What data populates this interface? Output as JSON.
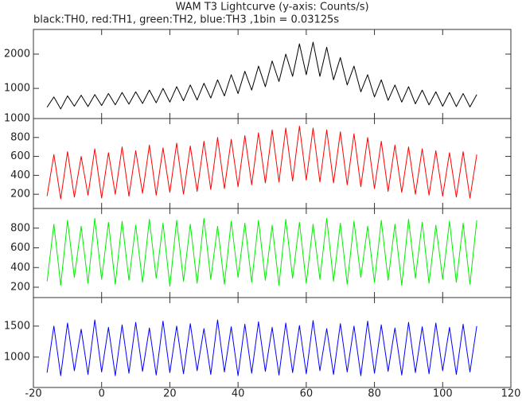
{
  "title": "WAM T3 Lightcurve (y-axis: Counts/s)",
  "subtitle": "black:TH0, red:TH1, green:TH2, blue:TH3 ,1bin = 0.03125s",
  "chart_data": [
    {
      "type": "line",
      "xlim": [
        -20,
        120
      ],
      "xticks": [
        -20,
        0,
        20,
        40,
        60,
        80,
        100,
        120
      ],
      "ylim": [
        120,
        2720
      ],
      "yticks": [
        1000,
        2000
      ],
      "x": [
        -16,
        -14,
        -12,
        -10,
        -8,
        -6,
        -4,
        -2,
        0,
        2,
        4,
        6,
        8,
        10,
        12,
        14,
        16,
        18,
        20,
        22,
        24,
        26,
        28,
        30,
        32,
        34,
        36,
        38,
        40,
        42,
        44,
        46,
        48,
        50,
        52,
        54,
        56,
        58,
        60,
        62,
        64,
        66,
        68,
        70,
        72,
        74,
        76,
        78,
        80,
        82,
        84,
        86,
        88,
        90,
        92,
        94,
        96,
        98,
        100,
        102,
        104,
        106,
        108,
        110
      ],
      "series": [
        {
          "color": "#000000",
          "values": [
            450,
            750,
            400,
            780,
            480,
            800,
            470,
            820,
            500,
            850,
            520,
            880,
            540,
            900,
            560,
            950,
            580,
            1000,
            600,
            1050,
            640,
            1100,
            660,
            1150,
            720,
            1250,
            780,
            1400,
            850,
            1500,
            950,
            1650,
            1050,
            1800,
            1200,
            2000,
            1350,
            2300,
            1400,
            2350,
            1350,
            2200,
            1250,
            1900,
            1100,
            1650,
            900,
            1400,
            750,
            1250,
            650,
            1100,
            600,
            1050,
            550,
            950,
            520,
            900,
            480,
            880,
            470,
            850,
            460,
            820
          ]
        }
      ]
    },
    {
      "type": "line",
      "xlim": [
        -20,
        120
      ],
      "xticks": [
        -20,
        0,
        20,
        40,
        60,
        80,
        100,
        120
      ],
      "ylim": [
        50,
        1000
      ],
      "yticks": [
        200,
        400,
        600,
        800,
        1000
      ],
      "x": [
        -16,
        -14,
        -12,
        -10,
        -8,
        -6,
        -4,
        -2,
        0,
        2,
        4,
        6,
        8,
        10,
        12,
        14,
        16,
        18,
        20,
        22,
        24,
        26,
        28,
        30,
        32,
        34,
        36,
        38,
        40,
        42,
        44,
        46,
        48,
        50,
        52,
        54,
        56,
        58,
        60,
        62,
        64,
        66,
        68,
        70,
        72,
        74,
        76,
        78,
        80,
        82,
        84,
        86,
        88,
        90,
        92,
        94,
        96,
        98,
        100,
        102,
        104,
        106,
        108,
        110
      ],
      "series": [
        {
          "color": "#ff0000",
          "values": [
            180,
            620,
            150,
            650,
            170,
            600,
            190,
            680,
            160,
            640,
            200,
            700,
            180,
            660,
            210,
            720,
            190,
            690,
            220,
            740,
            200,
            710,
            230,
            760,
            250,
            800,
            260,
            780,
            280,
            820,
            300,
            850,
            320,
            880,
            330,
            900,
            340,
            920,
            350,
            900,
            330,
            880,
            320,
            860,
            300,
            840,
            280,
            800,
            260,
            760,
            230,
            720,
            220,
            700,
            200,
            680,
            190,
            660,
            180,
            640,
            170,
            650,
            160,
            620
          ]
        }
      ]
    },
    {
      "type": "line",
      "xlim": [
        -20,
        120
      ],
      "xticks": [
        -20,
        0,
        20,
        40,
        60,
        80,
        100,
        120
      ],
      "ylim": [
        95,
        1000
      ],
      "yticks": [
        200,
        400,
        600,
        800
      ],
      "x": [
        -16,
        -14,
        -12,
        -10,
        -8,
        -6,
        -4,
        -2,
        0,
        2,
        4,
        6,
        8,
        10,
        12,
        14,
        16,
        18,
        20,
        22,
        24,
        26,
        28,
        30,
        32,
        34,
        36,
        38,
        40,
        42,
        44,
        46,
        48,
        50,
        52,
        54,
        56,
        58,
        60,
        62,
        64,
        66,
        68,
        70,
        72,
        74,
        76,
        78,
        80,
        82,
        84,
        86,
        88,
        90,
        92,
        94,
        96,
        98,
        100,
        102,
        104,
        106,
        108,
        110
      ],
      "series": [
        {
          "color": "#00ee00",
          "values": [
            260,
            840,
            220,
            880,
            300,
            820,
            240,
            900,
            280,
            860,
            230,
            870,
            270,
            830,
            250,
            890,
            290,
            850,
            210,
            880,
            260,
            840,
            240,
            900,
            280,
            820,
            230,
            870,
            300,
            850,
            250,
            880,
            270,
            830,
            220,
            890,
            290,
            860,
            240,
            840,
            280,
            900,
            260,
            850,
            230,
            870,
            300,
            820,
            250,
            880,
            270,
            840,
            220,
            890,
            290,
            860,
            240,
            830,
            280,
            870,
            250,
            850,
            230,
            880
          ]
        }
      ]
    },
    {
      "type": "line",
      "xlim": [
        -20,
        120
      ],
      "xticks": [
        -20,
        0,
        20,
        40,
        60,
        80,
        100,
        120
      ],
      "ylim": [
        510,
        1960
      ],
      "yticks": [
        1000,
        1500
      ],
      "x": [
        -16,
        -14,
        -12,
        -10,
        -8,
        -6,
        -4,
        -2,
        0,
        2,
        4,
        6,
        8,
        10,
        12,
        14,
        16,
        18,
        20,
        22,
        24,
        26,
        28,
        30,
        32,
        34,
        36,
        38,
        40,
        42,
        44,
        46,
        48,
        50,
        52,
        54,
        56,
        58,
        60,
        62,
        64,
        66,
        68,
        70,
        72,
        74,
        76,
        78,
        80,
        82,
        84,
        86,
        88,
        90,
        92,
        94,
        96,
        98,
        100,
        102,
        104,
        106,
        108,
        110
      ],
      "series": [
        {
          "color": "#0000ff",
          "values": [
            750,
            1500,
            700,
            1550,
            780,
            1450,
            720,
            1600,
            760,
            1480,
            700,
            1520,
            740,
            1560,
            770,
            1470,
            710,
            1580,
            750,
            1500,
            730,
            1540,
            780,
            1460,
            720,
            1600,
            760,
            1490,
            700,
            1530,
            740,
            1570,
            770,
            1480,
            710,
            1550,
            750,
            1510,
            730,
            1590,
            780,
            1460,
            720,
            1540,
            760,
            1500,
            700,
            1580,
            740,
            1520,
            770,
            1470,
            710,
            1560,
            750,
            1490,
            730,
            1550,
            780,
            1480,
            720,
            1530,
            760,
            1500
          ]
        }
      ]
    }
  ]
}
